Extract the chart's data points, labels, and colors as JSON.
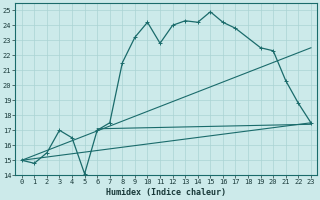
{
  "xlabel": "Humidex (Indice chaleur)",
  "bg_color": "#cceaea",
  "line_color": "#1a6b6b",
  "grid_color": "#aad4d4",
  "xlim": [
    -0.5,
    23.5
  ],
  "ylim": [
    14,
    25.5
  ],
  "yticks": [
    14,
    15,
    16,
    17,
    18,
    19,
    20,
    21,
    22,
    23,
    24,
    25
  ],
  "xticks": [
    0,
    1,
    2,
    3,
    4,
    5,
    6,
    7,
    8,
    9,
    10,
    11,
    12,
    13,
    14,
    15,
    16,
    17,
    18,
    19,
    20,
    21,
    22,
    23
  ],
  "line1_x": [
    0,
    1,
    2,
    3,
    4,
    5,
    6,
    7,
    8,
    9,
    10,
    11,
    12,
    13,
    14,
    15,
    16,
    17,
    19,
    20,
    21,
    22,
    23
  ],
  "line1_y": [
    15.0,
    14.8,
    15.5,
    17.0,
    16.5,
    14.1,
    17.0,
    17.5,
    21.5,
    23.2,
    24.2,
    22.8,
    24.0,
    24.3,
    24.2,
    24.9,
    24.2,
    23.8,
    22.5,
    22.3,
    20.3,
    18.8,
    17.5
  ],
  "line2_x": [
    0,
    23
  ],
  "line2_y": [
    15.0,
    22.5
  ],
  "line3_x": [
    0,
    23
  ],
  "line3_y": [
    15.0,
    17.5
  ],
  "line4_x": [
    6,
    23
  ],
  "line4_y": [
    17.1,
    17.4
  ],
  "tick_fontsize": 5.0,
  "xlabel_fontsize": 6.0
}
